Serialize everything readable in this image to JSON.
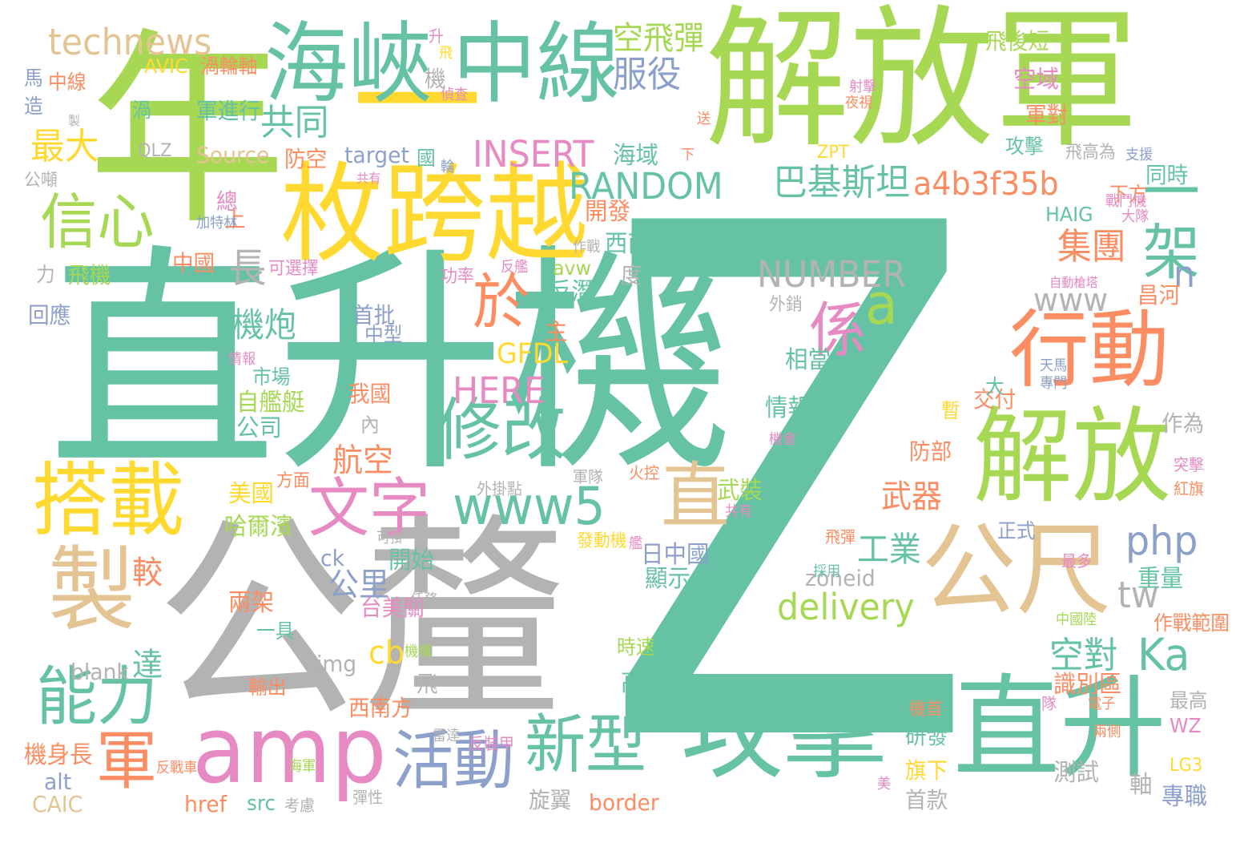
{
  "palette": {
    "green": "#66c2a5",
    "orange": "#fc8d62",
    "blue": "#8da0cb",
    "pink": "#e78ac3",
    "lime": "#a6d854",
    "yellow": "#ffd92f",
    "tan": "#e5c494",
    "gray": "#b3b3b3"
  },
  "words": [
    {
      "text": "Z",
      "color": "green"
    },
    {
      "text": "直升機",
      "color": "green"
    },
    {
      "text": "公釐",
      "color": "gray"
    },
    {
      "text": "解放軍",
      "color": "lime"
    },
    {
      "text": "年",
      "color": "lime"
    },
    {
      "text": "一",
      "color": "yellow"
    },
    {
      "text": "枚跨越",
      "color": "yellow"
    },
    {
      "text": "海峽",
      "color": "green"
    },
    {
      "text": "中線",
      "color": "green"
    },
    {
      "text": "攻擊",
      "color": "green"
    },
    {
      "text": "直升",
      "color": "green"
    },
    {
      "text": "解放",
      "color": "lime"
    },
    {
      "text": "公尺",
      "color": "tan"
    },
    {
      "text": "行動",
      "color": "orange"
    },
    {
      "text": "amp",
      "color": "pink"
    },
    {
      "text": "搭載",
      "color": "yellow"
    },
    {
      "text": "製",
      "color": "tan"
    },
    {
      "text": "修改",
      "color": "green"
    },
    {
      "text": "文字",
      "color": "pink"
    },
    {
      "text": "www5",
      "color": "green"
    },
    {
      "text": "直",
      "color": "tan"
    },
    {
      "text": "活動",
      "color": "blue"
    },
    {
      "text": "新型",
      "color": "green"
    },
    {
      "text": "能力",
      "color": "green"
    },
    {
      "text": "軍",
      "color": "orange"
    },
    {
      "text": "信心",
      "color": "lime"
    },
    {
      "text": "於",
      "color": "orange"
    },
    {
      "text": "係",
      "color": "pink"
    },
    {
      "text": "a",
      "color": "lime"
    },
    {
      "text": "一架",
      "color": "green"
    },
    {
      "text": "technews",
      "color": "tan"
    },
    {
      "text": "服役",
      "color": "blue"
    },
    {
      "text": "空飛彈",
      "color": "lime"
    },
    {
      "text": "共同",
      "color": "green"
    },
    {
      "text": "最大",
      "color": "yellow"
    },
    {
      "text": "INSERT",
      "color": "pink"
    },
    {
      "text": "RANDOM",
      "color": "green"
    },
    {
      "text": "巴基斯坦",
      "color": "green"
    },
    {
      "text": "a4b3f35b",
      "color": "orange"
    },
    {
      "text": "NUMBER",
      "color": "gray"
    },
    {
      "text": "www",
      "color": "gray"
    },
    {
      "text": "集團",
      "color": "orange"
    },
    {
      "text": "n",
      "color": "blue"
    },
    {
      "text": "長",
      "color": "gray"
    },
    {
      "text": "機炮",
      "color": "green"
    },
    {
      "text": "GFDL",
      "color": "yellow"
    },
    {
      "text": "HERE",
      "color": "pink"
    },
    {
      "text": "航空",
      "color": "orange"
    },
    {
      "text": "武器",
      "color": "orange"
    },
    {
      "text": "工業",
      "color": "green"
    },
    {
      "text": "php",
      "color": "blue"
    },
    {
      "text": "tw",
      "color": "gray"
    },
    {
      "text": "delivery",
      "color": "lime"
    },
    {
      "text": "空對",
      "color": "green"
    },
    {
      "text": "Ka",
      "color": "green"
    },
    {
      "text": "cb",
      "color": "yellow"
    },
    {
      "text": "公里",
      "color": "blue"
    },
    {
      "text": "較",
      "color": "orange"
    },
    {
      "text": "達",
      "color": "green"
    },
    {
      "text": "開發",
      "color": "orange"
    },
    {
      "text": "西南",
      "color": "green"
    },
    {
      "text": "反潛",
      "color": "green"
    },
    {
      "text": "avw",
      "color": "lime"
    },
    {
      "text": "首批",
      "color": "blue"
    },
    {
      "text": "中型",
      "color": "blue"
    },
    {
      "text": "主",
      "color": "orange"
    },
    {
      "text": "相當",
      "color": "green"
    },
    {
      "text": "情報",
      "color": "green"
    },
    {
      "text": "自艦艇",
      "color": "lime"
    },
    {
      "text": "公司",
      "color": "green"
    },
    {
      "text": "我國",
      "color": "orange"
    },
    {
      "text": "內",
      "color": "gray"
    },
    {
      "text": "市場",
      "color": "green"
    },
    {
      "text": "武裝",
      "color": "lime"
    },
    {
      "text": "美國",
      "color": "yellow"
    },
    {
      "text": "哈爾濱",
      "color": "lime"
    },
    {
      "text": "日中國",
      "color": "blue"
    },
    {
      "text": "顯示",
      "color": "green"
    },
    {
      "text": "zoneid",
      "color": "gray"
    },
    {
      "text": "兩架",
      "color": "orange"
    },
    {
      "text": "台美關",
      "color": "pink"
    },
    {
      "text": "開始",
      "color": "green"
    },
    {
      "text": "ck",
      "color": "blue"
    },
    {
      "text": "img",
      "color": "gray"
    },
    {
      "text": "blank",
      "color": "gray"
    },
    {
      "text": "一具",
      "color": "green"
    },
    {
      "text": "西南方",
      "color": "orange"
    },
    {
      "text": "飛",
      "color": "gray"
    },
    {
      "text": "高",
      "color": "green"
    },
    {
      "text": "輸出",
      "color": "orange"
    },
    {
      "text": "時速",
      "color": "lime"
    },
    {
      "text": "研發",
      "color": "green"
    },
    {
      "text": "旗下",
      "color": "yellow"
    },
    {
      "text": "首款",
      "color": "gray"
    },
    {
      "text": "border",
      "color": "orange"
    },
    {
      "text": "旋翼",
      "color": "gray"
    },
    {
      "text": "src",
      "color": "green"
    },
    {
      "text": "href",
      "color": "orange"
    },
    {
      "text": "考慮",
      "color": "gray"
    },
    {
      "text": "彈性",
      "color": "gray"
    },
    {
      "text": "alt",
      "color": "blue"
    },
    {
      "text": "CAIC",
      "color": "tan"
    },
    {
      "text": "機身長",
      "color": "orange"
    },
    {
      "text": "測試",
      "color": "gray"
    },
    {
      "text": "軸",
      "color": "gray"
    },
    {
      "text": "專職",
      "color": "blue"
    },
    {
      "text": "LG3",
      "color": "yellow"
    },
    {
      "text": "WZ",
      "color": "pink"
    },
    {
      "text": "最高",
      "color": "gray"
    },
    {
      "text": "作戰範圍",
      "color": "orange"
    },
    {
      "text": "重量",
      "color": "green"
    },
    {
      "text": "識別區",
      "color": "orange"
    },
    {
      "text": "正式",
      "color": "blue"
    },
    {
      "text": "作為",
      "color": "gray"
    },
    {
      "text": "交付",
      "color": "orange"
    },
    {
      "text": "暫",
      "color": "yellow"
    },
    {
      "text": "防部",
      "color": "orange"
    },
    {
      "text": "大",
      "color": "green"
    },
    {
      "text": "昌河",
      "color": "orange"
    },
    {
      "text": "HAIG",
      "color": "green"
    },
    {
      "text": "同時",
      "color": "green"
    },
    {
      "text": "下方",
      "color": "orange"
    },
    {
      "text": "攻擊",
      "color": "green"
    },
    {
      "text": "ZPT",
      "color": "yellow"
    },
    {
      "text": "軍對",
      "color": "orange"
    },
    {
      "text": "空域",
      "color": "pink"
    },
    {
      "text": "飛後短",
      "color": "lime"
    },
    {
      "text": "飛高為",
      "color": "gray"
    },
    {
      "text": "海域",
      "color": "green"
    },
    {
      "text": "國",
      "color": "green"
    },
    {
      "text": "target",
      "color": "blue"
    },
    {
      "text": "防空",
      "color": "orange"
    },
    {
      "text": "Source",
      "color": "tan"
    },
    {
      "text": "QLZ",
      "color": "gray"
    },
    {
      "text": "軍進行",
      "color": "green"
    },
    {
      "text": "AVIC",
      "color": "yellow"
    },
    {
      "text": "渦輪軸",
      "color": "orange"
    },
    {
      "text": "中線",
      "color": "orange"
    },
    {
      "text": "馬",
      "color": "blue"
    },
    {
      "text": "造",
      "color": "blue"
    },
    {
      "text": "渦",
      "color": "green"
    },
    {
      "text": "公噸",
      "color": "gray"
    },
    {
      "text": "總",
      "color": "pink"
    },
    {
      "text": "上",
      "color": "orange"
    },
    {
      "text": "中國",
      "color": "orange"
    },
    {
      "text": "飛機",
      "color": "lime"
    },
    {
      "text": "可選擇",
      "color": "pink"
    },
    {
      "text": "力",
      "color": "gray"
    },
    {
      "text": "回應",
      "color": "blue"
    },
    {
      "text": "機",
      "color": "gray"
    },
    {
      "text": "度",
      "color": "gray"
    },
    {
      "text": "外銷",
      "color": "gray"
    },
    {
      "text": "功率",
      "color": "pink"
    },
    {
      "text": "方面",
      "color": "orange"
    },
    {
      "text": "火控",
      "color": "orange"
    },
    {
      "text": "外掛點",
      "color": "gray"
    },
    {
      "text": "軍隊",
      "color": "gray"
    },
    {
      "text": "發動機",
      "color": "yellow"
    },
    {
      "text": "可掛",
      "color": "gray"
    },
    {
      "text": "任務",
      "color": "gray"
    },
    {
      "text": "飛彈",
      "color": "orange"
    },
    {
      "text": "最多",
      "color": "pink"
    },
    {
      "text": "中國陸",
      "color": "lime"
    },
    {
      "text": "反裝甲",
      "color": "pink"
    },
    {
      "text": "雷達",
      "color": "gray"
    },
    {
      "text": "四個",
      "color": "green"
    },
    {
      "text": "機首",
      "color": "orange"
    },
    {
      "text": "兩側",
      "color": "orange"
    },
    {
      "text": "電子",
      "color": "orange"
    },
    {
      "text": "隊",
      "color": "pink"
    },
    {
      "text": "突擊",
      "color": "pink"
    },
    {
      "text": "紅旗",
      "color": "orange"
    },
    {
      "text": "專門",
      "color": "blue"
    },
    {
      "text": "天馬",
      "color": "blue"
    },
    {
      "text": "偵查",
      "color": "pink"
    },
    {
      "text": "支援",
      "color": "blue"
    },
    {
      "text": "射擊",
      "color": "pink"
    },
    {
      "text": "夜視",
      "color": "orange"
    },
    {
      "text": "升",
      "color": "pink"
    },
    {
      "text": "飛",
      "color": "yellow"
    },
    {
      "text": "送",
      "color": "orange"
    },
    {
      "text": "下",
      "color": "orange"
    },
    {
      "text": "輪",
      "color": "blue"
    },
    {
      "text": "共有",
      "color": "pink"
    },
    {
      "text": "加特林",
      "color": "blue"
    },
    {
      "text": "製",
      "color": "gray"
    },
    {
      "text": "自動槍塔",
      "color": "pink"
    },
    {
      "text": "戰鬥機",
      "color": "pink"
    },
    {
      "text": "大隊",
      "color": "pink"
    },
    {
      "text": "作戰",
      "color": "gray"
    },
    {
      "text": "反艦",
      "color": "pink"
    },
    {
      "text": "共有",
      "color": "pink"
    },
    {
      "text": "機會",
      "color": "pink"
    },
    {
      "text": "情報",
      "color": "pink"
    },
    {
      "text": "採用",
      "color": "green"
    },
    {
      "text": "海軍",
      "color": "lime"
    },
    {
      "text": "艦",
      "color": "pink"
    },
    {
      "text": "機構",
      "color": "lime"
    },
    {
      "text": "反戰車",
      "color": "orange"
    },
    {
      "text": "美",
      "color": "pink"
    },
    {
      "text": "發",
      "color": "orange"
    }
  ]
}
